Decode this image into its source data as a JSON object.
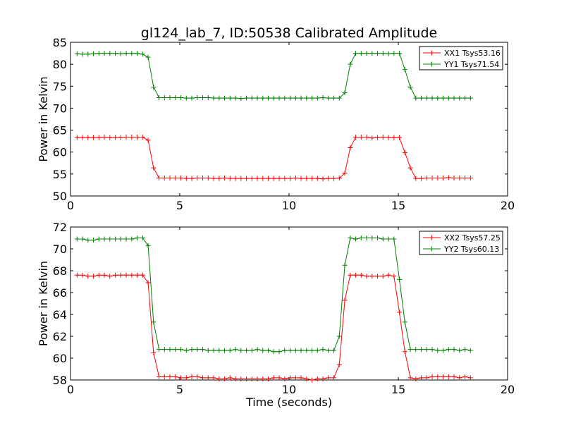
{
  "title": "gl124_lab_7, ID:50538 Calibrated Amplitude",
  "chart_data": [
    {
      "type": "line",
      "ylabel": "Power in Kelvin",
      "xlabel": "",
      "xlim": [
        0,
        20
      ],
      "ylim": [
        50,
        85
      ],
      "xticks": [
        "0",
        "5",
        "10",
        "15",
        "20"
      ],
      "yticks": [
        "50",
        "55",
        "60",
        "65",
        "70",
        "75",
        "80",
        "85"
      ],
      "legend_position": "top-right",
      "x": [
        0.3,
        0.55,
        0.8,
        1.05,
        1.3,
        1.55,
        1.8,
        2.05,
        2.3,
        2.55,
        2.8,
        3.05,
        3.3,
        3.55,
        3.8,
        4.05,
        4.3,
        4.55,
        4.8,
        5.05,
        5.3,
        5.55,
        5.8,
        6.05,
        6.3,
        6.55,
        6.8,
        7.05,
        7.3,
        7.55,
        7.8,
        8.05,
        8.3,
        8.55,
        8.8,
        9.05,
        9.3,
        9.55,
        9.8,
        10.05,
        10.3,
        10.55,
        10.8,
        11.05,
        11.3,
        11.55,
        11.8,
        12.05,
        12.3,
        12.55,
        12.8,
        13.05,
        13.3,
        13.55,
        13.8,
        14.05,
        14.3,
        14.55,
        14.8,
        15.05,
        15.3,
        15.55,
        15.8,
        16.05,
        16.3,
        16.55,
        16.8,
        17.05,
        17.3,
        17.55,
        17.8,
        18.05,
        18.3
      ],
      "series": [
        {
          "name": "XX1 Tsys53.16",
          "color": "#ff0000",
          "values": [
            63.3,
            63.3,
            63.3,
            63.3,
            63.3,
            63.4,
            63.3,
            63.3,
            63.3,
            63.4,
            63.4,
            63.4,
            63.4,
            62.7,
            56.4,
            54.1,
            54.1,
            54.1,
            54.1,
            54.1,
            54.0,
            54.0,
            54.1,
            54.1,
            54.1,
            54.0,
            54.0,
            54.1,
            54.0,
            54.0,
            54.0,
            54.0,
            54.0,
            54.0,
            54.0,
            54.0,
            54.0,
            54.0,
            54.0,
            54.0,
            54.1,
            54.0,
            54.0,
            54.0,
            54.0,
            53.9,
            54.0,
            54.0,
            54.1,
            55.2,
            61.0,
            63.4,
            63.4,
            63.4,
            63.2,
            63.3,
            63.4,
            63.3,
            63.3,
            63.3,
            59.9,
            56.4,
            54.0,
            54.0,
            54.1,
            54.1,
            54.1,
            54.1,
            54.2,
            54.1,
            54.1,
            54.1,
            54.1
          ]
        },
        {
          "name": "YY1 Tsys71.54",
          "color": "#008000",
          "values": [
            82.4,
            82.3,
            82.3,
            82.4,
            82.5,
            82.5,
            82.5,
            82.5,
            82.4,
            82.5,
            82.5,
            82.5,
            82.3,
            81.6,
            74.8,
            72.4,
            72.4,
            72.4,
            72.4,
            72.4,
            72.3,
            72.3,
            72.4,
            72.4,
            72.4,
            72.3,
            72.3,
            72.3,
            72.3,
            72.3,
            72.2,
            72.3,
            72.3,
            72.3,
            72.3,
            72.3,
            72.3,
            72.3,
            72.3,
            72.3,
            72.3,
            72.3,
            72.3,
            72.3,
            72.3,
            72.4,
            72.3,
            72.3,
            72.3,
            73.5,
            80.0,
            82.5,
            82.5,
            82.5,
            82.5,
            82.5,
            82.5,
            82.4,
            82.5,
            82.5,
            78.8,
            74.8,
            72.3,
            72.3,
            72.3,
            72.3,
            72.3,
            72.3,
            72.3,
            72.3,
            72.3,
            72.3,
            72.3
          ]
        }
      ]
    },
    {
      "type": "line",
      "ylabel": "Power in Kelvin",
      "xlabel": "Time (seconds)",
      "xlim": [
        0,
        20
      ],
      "ylim": [
        58,
        72
      ],
      "xticks": [
        "0",
        "5",
        "10",
        "15",
        "20"
      ],
      "yticks": [
        "58",
        "60",
        "62",
        "64",
        "66",
        "68",
        "70",
        "72"
      ],
      "legend_position": "top-right",
      "x": [
        0.3,
        0.55,
        0.8,
        1.05,
        1.3,
        1.55,
        1.8,
        2.05,
        2.3,
        2.55,
        2.8,
        3.05,
        3.3,
        3.55,
        3.8,
        4.05,
        4.3,
        4.55,
        4.8,
        5.05,
        5.3,
        5.55,
        5.8,
        6.05,
        6.3,
        6.55,
        6.8,
        7.05,
        7.3,
        7.55,
        7.8,
        8.05,
        8.3,
        8.55,
        8.8,
        9.05,
        9.3,
        9.55,
        9.8,
        10.05,
        10.3,
        10.55,
        10.8,
        11.05,
        11.3,
        11.55,
        11.8,
        12.05,
        12.3,
        12.55,
        12.8,
        13.05,
        13.3,
        13.55,
        13.8,
        14.05,
        14.3,
        14.55,
        14.8,
        15.05,
        15.3,
        15.55,
        15.8,
        16.05,
        16.3,
        16.55,
        16.8,
        17.05,
        17.3,
        17.55,
        17.8,
        18.05,
        18.3
      ],
      "series": [
        {
          "name": "XX2 Tsys57.25",
          "color": "#ff0000",
          "values": [
            67.6,
            67.6,
            67.5,
            67.5,
            67.6,
            67.6,
            67.5,
            67.6,
            67.6,
            67.6,
            67.6,
            67.6,
            67.6,
            66.9,
            60.5,
            58.3,
            58.3,
            58.3,
            58.3,
            58.2,
            58.2,
            58.3,
            58.3,
            58.2,
            58.2,
            58.2,
            58.1,
            58.1,
            58.2,
            58.1,
            58.1,
            58.1,
            58.1,
            58.1,
            58.1,
            58.1,
            58.2,
            58.2,
            58.1,
            58.2,
            58.2,
            58.2,
            58.1,
            58.0,
            58.1,
            58.1,
            58.2,
            58.2,
            59.4,
            65.3,
            67.6,
            67.6,
            67.6,
            67.5,
            67.5,
            67.5,
            67.5,
            67.6,
            67.5,
            64.2,
            60.6,
            58.2,
            58.1,
            58.2,
            58.2,
            58.3,
            58.3,
            58.3,
            58.3,
            58.3,
            58.2,
            58.3,
            58.2
          ]
        },
        {
          "name": "YY2 Tsys60.13",
          "color": "#008000",
          "values": [
            70.9,
            70.9,
            70.8,
            70.8,
            70.9,
            70.9,
            70.9,
            70.9,
            70.9,
            70.9,
            70.9,
            71.0,
            71.0,
            70.3,
            63.3,
            60.8,
            60.8,
            60.8,
            60.8,
            60.8,
            60.7,
            60.8,
            60.8,
            60.8,
            60.7,
            60.7,
            60.7,
            60.7,
            60.7,
            60.8,
            60.7,
            60.7,
            60.7,
            60.8,
            60.7,
            60.7,
            60.6,
            60.6,
            60.7,
            60.7,
            60.7,
            60.7,
            60.7,
            60.7,
            60.7,
            60.8,
            60.7,
            60.7,
            62.0,
            68.5,
            71.0,
            70.9,
            71.0,
            71.0,
            71.0,
            71.0,
            70.9,
            70.9,
            70.9,
            67.2,
            63.3,
            60.8,
            60.8,
            60.8,
            60.8,
            60.8,
            60.7,
            60.7,
            60.8,
            60.8,
            60.7,
            60.8,
            60.7
          ]
        }
      ]
    }
  ]
}
